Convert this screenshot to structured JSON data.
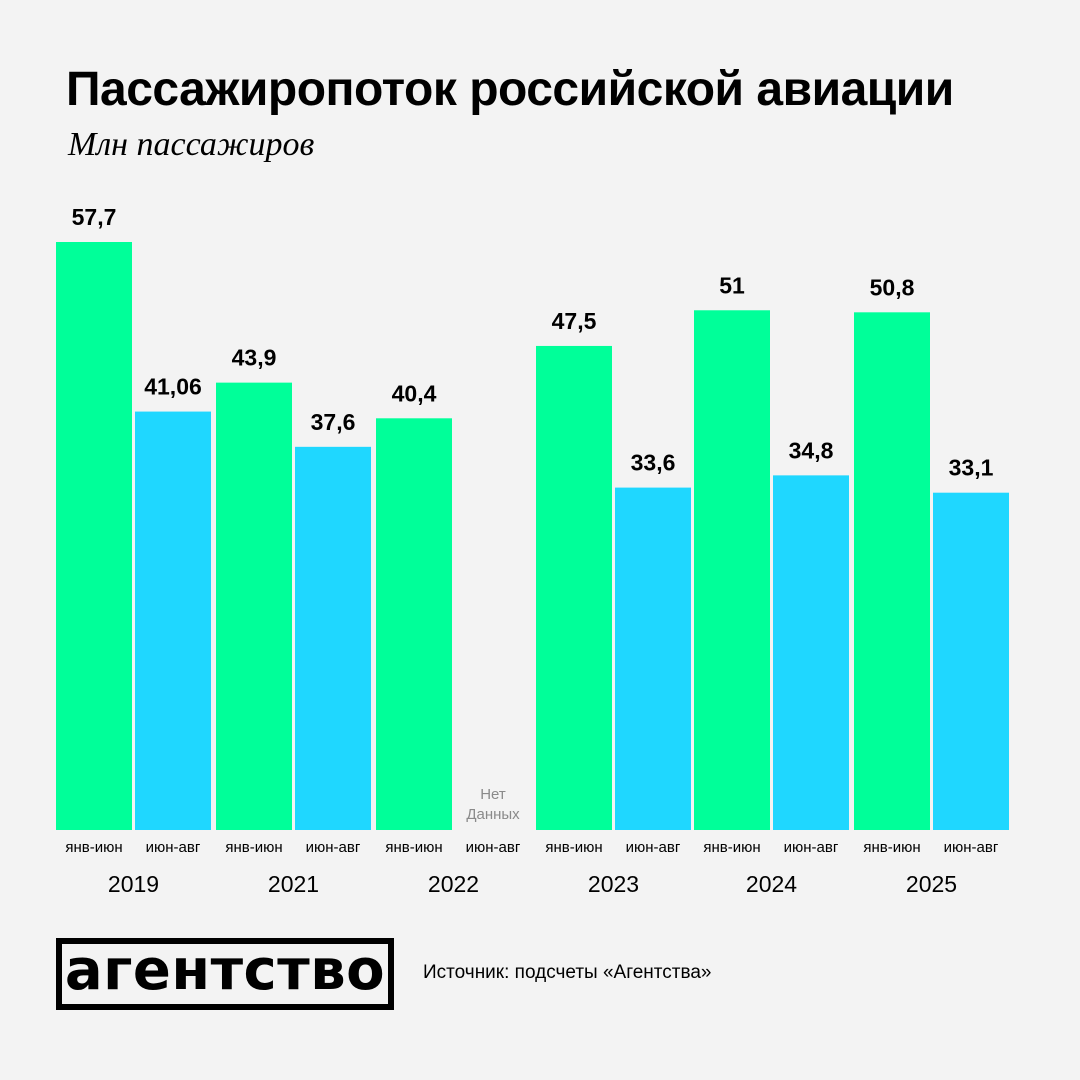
{
  "title": "Пассажиропоток российской авиации",
  "subtitle": "Млн пассажиров",
  "footer": {
    "logo": "агентство",
    "source": "Источник: подсчеты «Агентства»"
  },
  "colors": {
    "jan_jun": "#00ff99",
    "jun_aug": "#1fd7ff",
    "background": "#f3f3f3",
    "no_data_text": "#8a8a8a"
  },
  "chart_data": {
    "type": "bar",
    "title": "Пассажиропоток российской авиации",
    "subtitle": "Млн пассажиров",
    "ylim": [
      0,
      57.7
    ],
    "grid": false,
    "value_labels": true,
    "groups": [
      {
        "year": "2019",
        "bars": [
          {
            "period": "янв-июн",
            "value": 57.7,
            "label": "57,7"
          },
          {
            "period": "июн-авг",
            "value": 41.06,
            "label": "41,06"
          }
        ]
      },
      {
        "year": "2021",
        "bars": [
          {
            "period": "янв-июн",
            "value": 43.9,
            "label": "43,9"
          },
          {
            "period": "июн-авг",
            "value": 37.6,
            "label": "37,6"
          }
        ]
      },
      {
        "year": "2022",
        "bars": [
          {
            "period": "янв-июн",
            "value": 40.4,
            "label": "40,4"
          },
          {
            "period": "июн-авг",
            "value": null,
            "label": "",
            "no_data": [
              "Нет",
              "Данных"
            ]
          }
        ]
      },
      {
        "year": "2023",
        "bars": [
          {
            "period": "янв-июн",
            "value": 47.5,
            "label": "47,5"
          },
          {
            "period": "июн-авг",
            "value": 33.6,
            "label": "33,6"
          }
        ]
      },
      {
        "year": "2024",
        "bars": [
          {
            "period": "янв-июн",
            "value": 51,
            "label": "51"
          },
          {
            "period": "июн-авг",
            "value": 34.8,
            "label": "34,8"
          }
        ]
      },
      {
        "year": "2025",
        "bars": [
          {
            "period": "янв-июн",
            "value": 50.8,
            "label": "50,8"
          },
          {
            "period": "июн-авг",
            "value": 33.1,
            "label": "33,1"
          }
        ]
      }
    ]
  }
}
